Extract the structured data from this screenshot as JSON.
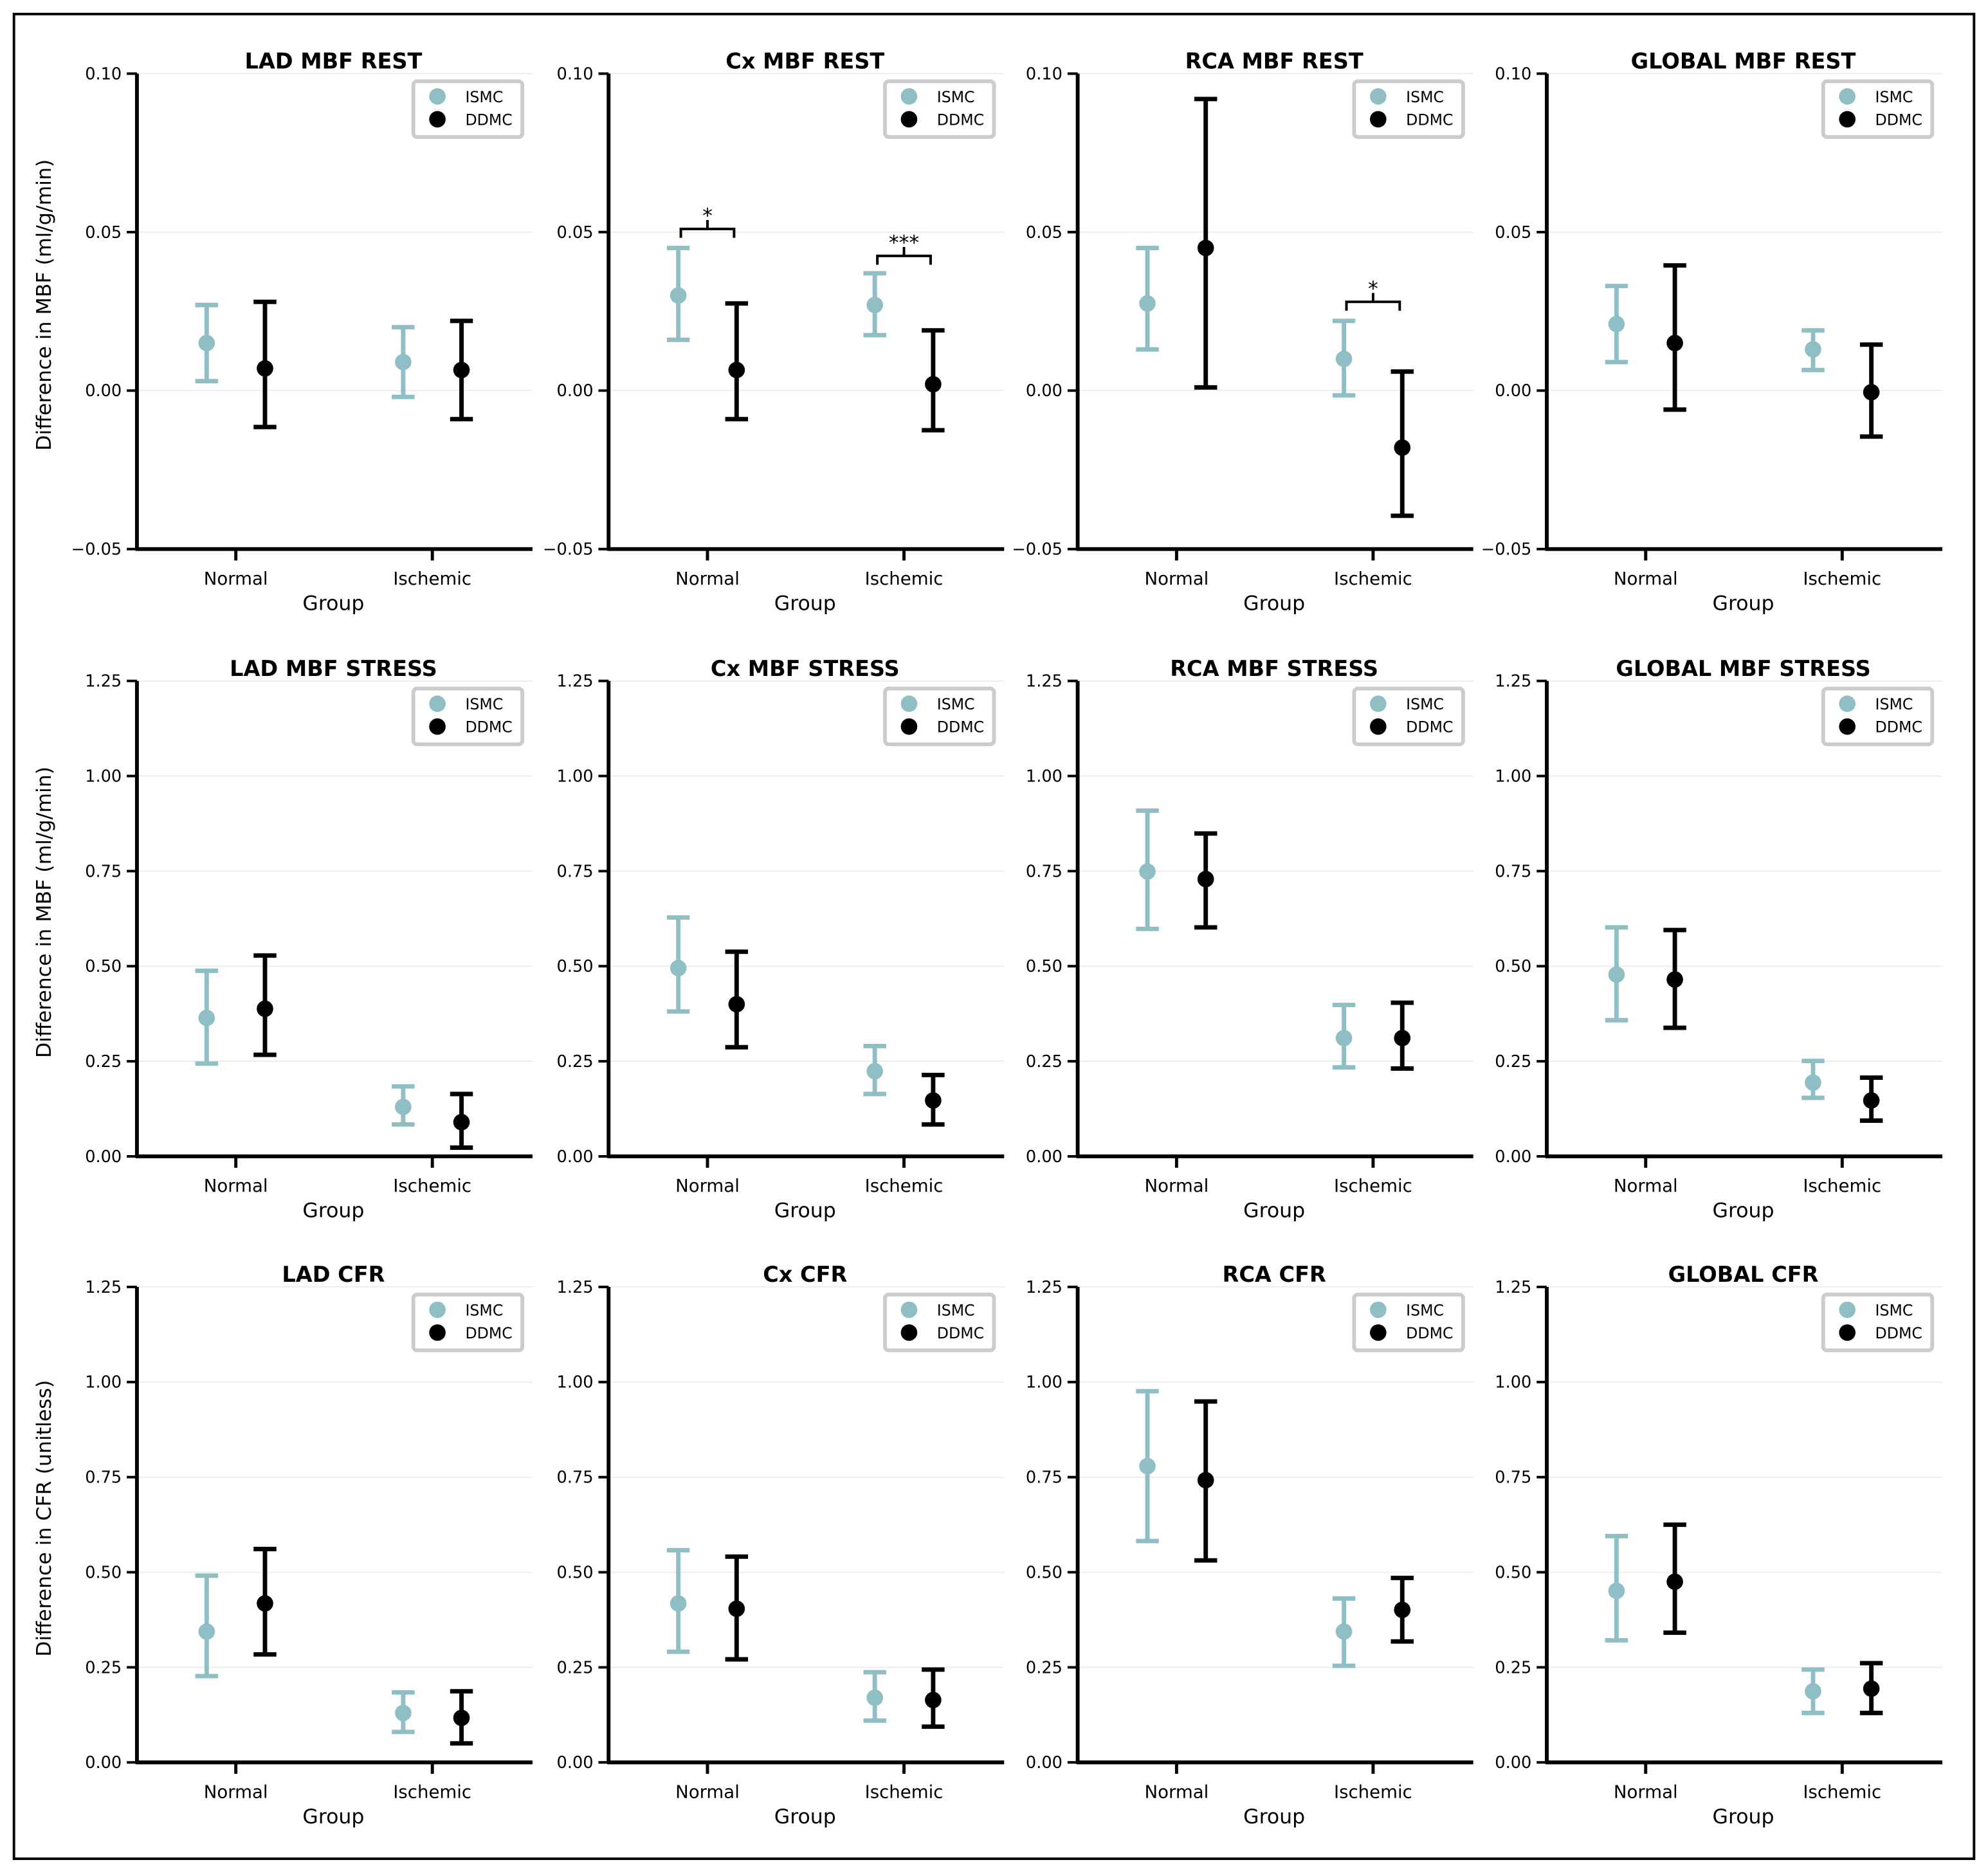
{
  "colors": {
    "ISMC": "#8fbfc4",
    "DDMC": "#000000",
    "grid": "#ececec"
  },
  "legend": {
    "placement": "top-right",
    "entries": [
      "ISMC",
      "DDMC"
    ]
  },
  "chart_data": [
    {
      "type": "errorbar",
      "title": "LAD MBF REST",
      "xlabel": "Group",
      "ylabel": "Difference in MBF (ml/g/min)",
      "categories": [
        "Normal",
        "Ischemic"
      ],
      "ylim": [
        -0.05,
        0.1
      ],
      "yticks": [
        "−0.05",
        "0.00",
        "0.05",
        "0.10"
      ],
      "ytick_values": [
        -0.05,
        0,
        0.05,
        0.1
      ],
      "grid": true,
      "series": [
        {
          "name": "ISMC",
          "mean": [
            0.015,
            0.009
          ],
          "low": [
            0.003,
            -0.002
          ],
          "high": [
            0.027,
            0.02
          ]
        },
        {
          "name": "DDMC",
          "mean": [
            0.007,
            0.0065
          ],
          "low": [
            -0.0115,
            -0.009
          ],
          "high": [
            0.028,
            0.022
          ]
        }
      ],
      "annotations": []
    },
    {
      "type": "errorbar",
      "title": "Cx MBF REST",
      "xlabel": "Group",
      "ylabel": "",
      "categories": [
        "Normal",
        "Ischemic"
      ],
      "ylim": [
        -0.05,
        0.1
      ],
      "yticks": [
        "−0.05",
        "0.00",
        "0.05",
        "0.10"
      ],
      "ytick_values": [
        -0.05,
        0,
        0.05,
        0.1
      ],
      "grid": true,
      "series": [
        {
          "name": "ISMC",
          "mean": [
            0.03,
            0.027
          ],
          "low": [
            0.016,
            0.0175
          ],
          "high": [
            0.045,
            0.037
          ]
        },
        {
          "name": "DDMC",
          "mean": [
            0.0065,
            0.002
          ],
          "low": [
            -0.009,
            -0.0125
          ],
          "high": [
            0.0275,
            0.019
          ]
        }
      ],
      "annotations": [
        {
          "category": "Normal",
          "text": "*",
          "y": 0.051
        },
        {
          "category": "Ischemic",
          "text": "***",
          "y": 0.0425
        }
      ]
    },
    {
      "type": "errorbar",
      "title": "RCA MBF REST",
      "xlabel": "Group",
      "ylabel": "",
      "categories": [
        "Normal",
        "Ischemic"
      ],
      "ylim": [
        -0.05,
        0.1
      ],
      "yticks": [
        "−0.05",
        "0.00",
        "0.05",
        "0.10"
      ],
      "ytick_values": [
        -0.05,
        0,
        0.05,
        0.1
      ],
      "grid": true,
      "series": [
        {
          "name": "ISMC",
          "mean": [
            0.0275,
            0.01
          ],
          "low": [
            0.013,
            -0.0015
          ],
          "high": [
            0.045,
            0.022
          ]
        },
        {
          "name": "DDMC",
          "mean": [
            0.045,
            -0.018
          ],
          "low": [
            0.001,
            -0.0395
          ],
          "high": [
            0.092,
            0.006
          ]
        }
      ],
      "annotations": [
        {
          "category": "Ischemic",
          "text": "*",
          "y": 0.028
        }
      ]
    },
    {
      "type": "errorbar",
      "title": "GLOBAL MBF REST",
      "xlabel": "Group",
      "ylabel": "",
      "categories": [
        "Normal",
        "Ischemic"
      ],
      "ylim": [
        -0.05,
        0.1
      ],
      "yticks": [
        "−0.05",
        "0.00",
        "0.05",
        "0.10"
      ],
      "ytick_values": [
        -0.05,
        0,
        0.05,
        0.1
      ],
      "grid": true,
      "series": [
        {
          "name": "ISMC",
          "mean": [
            0.021,
            0.013
          ],
          "low": [
            0.009,
            0.0065
          ],
          "high": [
            0.033,
            0.019
          ]
        },
        {
          "name": "DDMC",
          "mean": [
            0.015,
            -0.0005
          ],
          "low": [
            -0.006,
            -0.0145
          ],
          "high": [
            0.0395,
            0.0145
          ]
        }
      ],
      "annotations": []
    },
    {
      "type": "errorbar",
      "title": "LAD MBF STRESS",
      "xlabel": "Group",
      "ylabel": "Difference in MBF (ml/g/min)",
      "categories": [
        "Normal",
        "Ischemic"
      ],
      "ylim": [
        0,
        1.25
      ],
      "yticks": [
        "0.00",
        "0.25",
        "0.50",
        "0.75",
        "1.00",
        "1.25"
      ],
      "ytick_values": [
        0,
        0.25,
        0.5,
        0.75,
        1.0,
        1.25
      ],
      "grid": true,
      "series": [
        {
          "name": "ISMC",
          "mean": [
            0.364,
            0.13
          ],
          "low": [
            0.244,
            0.084
          ],
          "high": [
            0.488,
            0.184
          ]
        },
        {
          "name": "DDMC",
          "mean": [
            0.388,
            0.09
          ],
          "low": [
            0.267,
            0.023
          ],
          "high": [
            0.528,
            0.164
          ]
        }
      ],
      "annotations": []
    },
    {
      "type": "errorbar",
      "title": "Cx MBF STRESS",
      "xlabel": "Group",
      "ylabel": "",
      "categories": [
        "Normal",
        "Ischemic"
      ],
      "ylim": [
        0,
        1.25
      ],
      "yticks": [
        "0.00",
        "0.25",
        "0.50",
        "0.75",
        "1.00",
        "1.25"
      ],
      "ytick_values": [
        0,
        0.25,
        0.5,
        0.75,
        1.0,
        1.25
      ],
      "grid": true,
      "series": [
        {
          "name": "ISMC",
          "mean": [
            0.495,
            0.224
          ],
          "low": [
            0.381,
            0.164
          ],
          "high": [
            0.628,
            0.29
          ]
        },
        {
          "name": "DDMC",
          "mean": [
            0.4,
            0.147
          ],
          "low": [
            0.287,
            0.084
          ],
          "high": [
            0.538,
            0.214
          ]
        }
      ],
      "annotations": []
    },
    {
      "type": "errorbar",
      "title": "RCA MBF STRESS",
      "xlabel": "Group",
      "ylabel": "",
      "categories": [
        "Normal",
        "Ischemic"
      ],
      "ylim": [
        0,
        1.25
      ],
      "yticks": [
        "0.00",
        "0.25",
        "0.50",
        "0.75",
        "1.00",
        "1.25"
      ],
      "ytick_values": [
        0,
        0.25,
        0.5,
        0.75,
        1.0,
        1.25
      ],
      "grid": true,
      "series": [
        {
          "name": "ISMC",
          "mean": [
            0.749,
            0.311
          ],
          "low": [
            0.598,
            0.234
          ],
          "high": [
            0.909,
            0.398
          ]
        },
        {
          "name": "DDMC",
          "mean": [
            0.729,
            0.311
          ],
          "low": [
            0.602,
            0.231
          ],
          "high": [
            0.849,
            0.404
          ]
        }
      ],
      "annotations": []
    },
    {
      "type": "errorbar",
      "title": "GLOBAL MBF STRESS",
      "xlabel": "Group",
      "ylabel": "",
      "categories": [
        "Normal",
        "Ischemic"
      ],
      "ylim": [
        0,
        1.25
      ],
      "yticks": [
        "0.00",
        "0.25",
        "0.50",
        "0.75",
        "1.00",
        "1.25"
      ],
      "ytick_values": [
        0,
        0.25,
        0.5,
        0.75,
        1.0,
        1.25
      ],
      "grid": true,
      "series": [
        {
          "name": "ISMC",
          "mean": [
            0.478,
            0.194
          ],
          "low": [
            0.358,
            0.154
          ],
          "high": [
            0.602,
            0.251
          ]
        },
        {
          "name": "DDMC",
          "mean": [
            0.465,
            0.147
          ],
          "low": [
            0.338,
            0.094
          ],
          "high": [
            0.595,
            0.207
          ]
        }
      ],
      "annotations": []
    },
    {
      "type": "errorbar",
      "title": "LAD CFR",
      "xlabel": "Group",
      "ylabel": "Difference in CFR (unitless)",
      "categories": [
        "Normal",
        "Ischemic"
      ],
      "ylim": [
        0,
        1.25
      ],
      "yticks": [
        "0.00",
        "0.25",
        "0.50",
        "0.75",
        "1.00",
        "1.25"
      ],
      "ytick_values": [
        0,
        0.25,
        0.5,
        0.75,
        1.0,
        1.25
      ],
      "grid": true,
      "series": [
        {
          "name": "ISMC",
          "mean": [
            0.344,
            0.13
          ],
          "low": [
            0.227,
            0.08
          ],
          "high": [
            0.491,
            0.184
          ]
        },
        {
          "name": "DDMC",
          "mean": [
            0.418,
            0.117
          ],
          "low": [
            0.284,
            0.05
          ],
          "high": [
            0.561,
            0.187
          ]
        }
      ],
      "annotations": []
    },
    {
      "type": "errorbar",
      "title": "Cx CFR",
      "xlabel": "Group",
      "ylabel": "",
      "categories": [
        "Normal",
        "Ischemic"
      ],
      "ylim": [
        0,
        1.25
      ],
      "yticks": [
        "0.00",
        "0.25",
        "0.50",
        "0.75",
        "1.00",
        "1.25"
      ],
      "ytick_values": [
        0,
        0.25,
        0.5,
        0.75,
        1.0,
        1.25
      ],
      "grid": true,
      "series": [
        {
          "name": "ISMC",
          "mean": [
            0.418,
            0.17
          ],
          "low": [
            0.291,
            0.11
          ],
          "high": [
            0.558,
            0.237
          ]
        },
        {
          "name": "DDMC",
          "mean": [
            0.404,
            0.164
          ],
          "low": [
            0.271,
            0.094
          ],
          "high": [
            0.541,
            0.244
          ]
        }
      ],
      "annotations": []
    },
    {
      "type": "errorbar",
      "title": "RCA CFR",
      "xlabel": "Group",
      "ylabel": "",
      "categories": [
        "Normal",
        "Ischemic"
      ],
      "ylim": [
        0,
        1.25
      ],
      "yticks": [
        "0.00",
        "0.25",
        "0.50",
        "0.75",
        "1.00",
        "1.25"
      ],
      "ytick_values": [
        0,
        0.25,
        0.5,
        0.75,
        1.0,
        1.25
      ],
      "grid": true,
      "series": [
        {
          "name": "ISMC",
          "mean": [
            0.779,
            0.344
          ],
          "low": [
            0.582,
            0.254
          ],
          "high": [
            0.976,
            0.431
          ]
        },
        {
          "name": "DDMC",
          "mean": [
            0.742,
            0.401
          ],
          "low": [
            0.531,
            0.318
          ],
          "high": [
            0.949,
            0.485
          ]
        }
      ],
      "annotations": []
    },
    {
      "type": "errorbar",
      "title": "GLOBAL CFR",
      "xlabel": "Group",
      "ylabel": "",
      "categories": [
        "Normal",
        "Ischemic"
      ],
      "ylim": [
        0,
        1.25
      ],
      "yticks": [
        "0.00",
        "0.25",
        "0.50",
        "0.75",
        "1.00",
        "1.25"
      ],
      "ytick_values": [
        0,
        0.25,
        0.5,
        0.75,
        1.0,
        1.25
      ],
      "grid": true,
      "series": [
        {
          "name": "ISMC",
          "mean": [
            0.451,
            0.187
          ],
          "low": [
            0.321,
            0.13
          ],
          "high": [
            0.595,
            0.244
          ]
        },
        {
          "name": "DDMC",
          "mean": [
            0.475,
            0.194
          ],
          "low": [
            0.341,
            0.13
          ],
          "high": [
            0.625,
            0.261
          ]
        }
      ],
      "annotations": []
    }
  ]
}
